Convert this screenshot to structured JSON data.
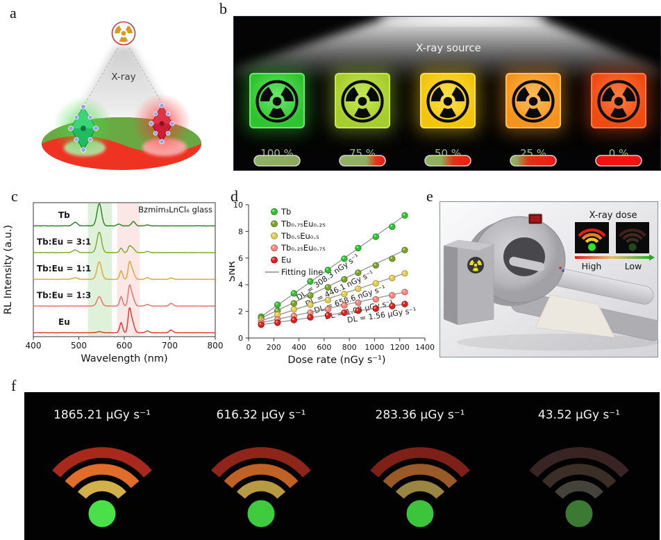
{
  "labels": {
    "a": "a",
    "b": "b",
    "c": "c",
    "d": "d",
    "e": "e",
    "f": "f"
  },
  "panel_a": {
    "xray_label": "X-ray"
  },
  "panel_b": {
    "source_label": "X-ray source",
    "percent_color": "#9dc27c",
    "items": [
      {
        "percent": "100 %",
        "cube_color": "#2fc32f",
        "cube_hi": "#6ce86c",
        "bar_stops": [
          [
            0,
            "#93b163"
          ],
          [
            100,
            "#8aa95c"
          ]
        ]
      },
      {
        "percent": "75 %",
        "cube_color": "#a6cd2e",
        "cube_hi": "#c8e858",
        "bar_stops": [
          [
            0,
            "#93b163"
          ],
          [
            58,
            "#8fae5e"
          ],
          [
            80,
            "#e23517"
          ],
          [
            100,
            "#ee1c10"
          ]
        ]
      },
      {
        "percent": "50 %",
        "cube_color": "#f2c50c",
        "cube_hi": "#ffe14e",
        "bar_stops": [
          [
            0,
            "#93b163"
          ],
          [
            35,
            "#8fae5e"
          ],
          [
            62,
            "#dd3317"
          ],
          [
            100,
            "#ee1c10"
          ]
        ]
      },
      {
        "percent": "25 %",
        "cube_color": "#f5921d",
        "cube_hi": "#ffc05e",
        "bar_stops": [
          [
            0,
            "#93b163"
          ],
          [
            12,
            "#8fae5e"
          ],
          [
            40,
            "#dd3317"
          ],
          [
            100,
            "#ee1c10"
          ]
        ]
      },
      {
        "percent": "0 %",
        "cube_color": "#ee4a12",
        "cube_hi": "#ff7e46",
        "bar_stops": [
          [
            0,
            "#f01313"
          ],
          [
            100,
            "#f01313"
          ]
        ]
      }
    ]
  },
  "chart_data": [
    {
      "type": "line",
      "title": "Bzmim₃LnCl₆ glass",
      "xlabel": "Wavelength (nm)",
      "ylabel": "RL Intensity (a.u.)",
      "xlim": [
        400,
        800
      ],
      "xticks": [
        400,
        500,
        600,
        700,
        800
      ],
      "bands": [
        {
          "from": 520,
          "to": 573,
          "color": "rgba(150,210,130,0.30)"
        },
        {
          "from": 584,
          "to": 634,
          "color": "rgba(246,170,170,0.28)"
        }
      ],
      "series": [
        {
          "label": "Tb",
          "color": "#217f21",
          "peaks": [
            [
              492,
              5,
              0.16
            ],
            [
              545,
              5,
              1.0
            ],
            [
              588,
              4,
              0.08
            ],
            [
              620,
              4,
              0.2
            ],
            [
              651,
              4,
              0.04
            ]
          ]
        },
        {
          "label": "Tb:Eu = 3:1",
          "color": "#76a829",
          "peaks": [
            [
              492,
              5,
              0.12
            ],
            [
              545,
              5,
              0.92
            ],
            [
              593,
              3.2,
              0.2
            ],
            [
              611,
              3,
              0.24
            ],
            [
              618,
              4.5,
              0.22
            ],
            [
              651,
              4,
              0.05
            ]
          ]
        },
        {
          "label": "Tb:Eu = 1:1",
          "color": "#dfa32e",
          "peaks": [
            [
              492,
              5,
              0.07
            ],
            [
              545,
              5,
              0.78
            ],
            [
              593,
              3.2,
              0.38
            ],
            [
              611,
              3,
              0.6
            ],
            [
              617,
              4.5,
              0.45
            ],
            [
              651,
              4,
              0.07
            ],
            [
              703,
              4,
              0.06
            ]
          ]
        },
        {
          "label": "Tb:Eu = 1:3",
          "color": "#ec6a66",
          "peaks": [
            [
              545,
              5,
              0.42
            ],
            [
              593,
              3.2,
              0.42
            ],
            [
              611,
              3,
              0.72
            ],
            [
              617,
              4.5,
              0.5
            ],
            [
              651,
              4,
              0.07
            ],
            [
              703,
              4,
              0.12
            ]
          ]
        },
        {
          "label": "Eu",
          "color": "#e43029",
          "peaks": [
            [
              545,
              5,
              0.05
            ],
            [
              593,
              3.2,
              0.45
            ],
            [
              611,
              3,
              0.88
            ],
            [
              617,
              4.5,
              0.55
            ],
            [
              651,
              4,
              0.08
            ],
            [
              703,
              4,
              0.12
            ]
          ]
        }
      ]
    },
    {
      "type": "scatter",
      "xlabel": "Dose rate (nGy s⁻¹)",
      "ylabel": "SNR",
      "xlim": [
        0,
        1400
      ],
      "ylim": [
        0,
        10
      ],
      "xticks": [
        0,
        200,
        400,
        600,
        800,
        1000,
        1200,
        1400
      ],
      "yticks": [
        0,
        2,
        4,
        6,
        8,
        10
      ],
      "x": [
        100,
        230,
        360,
        490,
        630,
        760,
        870,
        1010,
        1140,
        1240
      ],
      "series": [
        {
          "label": "Tb",
          "color": "#2fc42f",
          "edge": "#1a8a1a",
          "values": [
            1.6,
            2.5,
            3.35,
            4.25,
            5.1,
            5.95,
            6.75,
            7.6,
            8.35,
            9.2
          ],
          "dl": "DL = 308.3 nGy s⁻¹",
          "dl_anchor": 640
        },
        {
          "label": "Tb₀.₇₅Eu₀.₂₅",
          "color": "#7ca32b",
          "edge": "#55741c",
          "values": [
            1.5,
            2.05,
            2.6,
            3.2,
            3.8,
            4.4,
            4.9,
            5.45,
            5.95,
            6.6
          ],
          "dl": "DL = 446.1 nGy s⁻¹",
          "dl_anchor": 730
        },
        {
          "label": "Tb₀.₅Eu₀.₅",
          "color": "#e3cc55",
          "edge": "#a8922f",
          "values": [
            1.3,
            1.75,
            2.15,
            2.5,
            2.85,
            3.3,
            3.7,
            4.1,
            4.5,
            4.85
          ],
          "dl": "DL = 658.6 nGy s⁻¹",
          "dl_anchor": 810
        },
        {
          "label": "Tb₀.₂₅Eu₀.₇₅",
          "color": "#f18a7e",
          "edge": "#c05548",
          "values": [
            1.15,
            1.4,
            1.65,
            1.9,
            2.15,
            2.45,
            2.65,
            2.9,
            3.2,
            3.45
          ],
          "dl": "DL = 1.03 µGy s⁻¹",
          "dl_anchor": 880
        },
        {
          "label": "Eu",
          "color": "#e02020",
          "edge": "#9a1212",
          "values": [
            1.0,
            1.15,
            1.35,
            1.55,
            1.7,
            1.9,
            2.05,
            2.2,
            2.4,
            2.55
          ],
          "dl": "DL = 1.56 µGy s⁻¹",
          "dl_anchor": 1060
        }
      ],
      "fit_label": "Fitting line",
      "fit_color": "#8c8c8c"
    }
  ],
  "panel_e": {
    "dose_label": "X-ray dose",
    "high_label": "High",
    "low_label": "Low",
    "wifi_high": {
      "arcs": [
        "#e02018",
        "#ee8020",
        "#e6cc2a"
      ],
      "dot": "#2ee42e"
    },
    "wifi_low": {
      "arcs": [
        "#441e1a",
        "#40281e",
        "#363020"
      ],
      "dot": "#1e4a1c"
    }
  },
  "panel_f": {
    "items": [
      {
        "label": "1865.21 µGy s⁻¹",
        "arcs": [
          "#a8281c",
          "#e06e2a",
          "#d2b04a"
        ],
        "dot": "#4ae04a"
      },
      {
        "label": "616.32 µGy s⁻¹",
        "arcs": [
          "#8e241a",
          "#c06226",
          "#b89a42"
        ],
        "dot": "#3ecb3e"
      },
      {
        "label": "283.36 µGy s⁻¹",
        "arcs": [
          "#7e2018",
          "#9a5a28",
          "#9a8640"
        ],
        "dot": "#3cc43c"
      },
      {
        "label": "43.52 µGy s⁻¹",
        "arcs": [
          "#382422",
          "#3a2e26",
          "#44423a"
        ],
        "dot": "#3b7a33"
      }
    ]
  }
}
